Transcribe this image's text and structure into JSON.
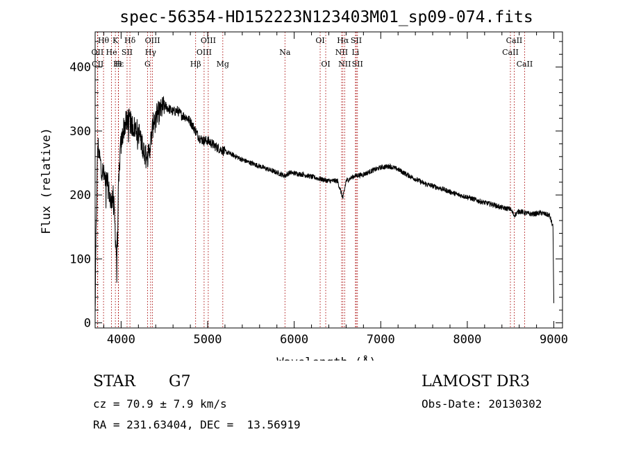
{
  "chart_data": {
    "type": "line",
    "title": "spec-56354-HD152223N123403M01_sp09-074.fits",
    "xlabel": "Wavelength (Å)",
    "ylabel": "Flux (relative)",
    "xlim": [
      3700,
      9100
    ],
    "ylim": [
      -8,
      455
    ],
    "xticks": [
      4000,
      5000,
      6000,
      7000,
      8000,
      9000
    ],
    "yticks": [
      0,
      100,
      200,
      300,
      400
    ],
    "spectrum_anchors": {
      "x": [
        3700,
        3710,
        3730,
        3760,
        3800,
        3840,
        3880,
        3910,
        3933,
        3950,
        3968,
        3990,
        4030,
        4080,
        4120,
        4200,
        4300,
        4340,
        4380,
        4450,
        4500,
        4550,
        4600,
        4650,
        4700,
        4750,
        4800,
        4861,
        4900,
        4950,
        5000,
        5100,
        5170,
        5200,
        5300,
        5400,
        5500,
        5600,
        5700,
        5800,
        5890,
        5950,
        6100,
        6300,
        6400,
        6500,
        6563,
        6600,
        6700,
        6800,
        6900,
        7000,
        7100,
        7200,
        7300,
        7400,
        7500,
        7600,
        7700,
        7800,
        7900,
        8000,
        8100,
        8200,
        8300,
        8400,
        8498,
        8542,
        8600,
        8662,
        8750,
        8850,
        8950,
        8990,
        9000
      ],
      "y": [
        10,
        130,
        280,
        250,
        230,
        220,
        190,
        200,
        140,
        100,
        200,
        270,
        305,
        320,
        310,
        300,
        255,
        280,
        320,
        330,
        340,
        335,
        330,
        332,
        325,
        322,
        315,
        300,
        290,
        285,
        285,
        275,
        270,
        268,
        262,
        255,
        250,
        245,
        240,
        235,
        230,
        235,
        232,
        225,
        222,
        222,
        195,
        222,
        230,
        232,
        238,
        243,
        245,
        240,
        232,
        225,
        218,
        214,
        210,
        205,
        200,
        197,
        192,
        188,
        185,
        180,
        178,
        168,
        175,
        172,
        170,
        172,
        168,
        150,
        30
      ]
    },
    "spectral_lines": [
      {
        "label": "Hθ",
        "x": 3797,
        "row": 0
      },
      {
        "label": "K",
        "x": 3934,
        "row": 0
      },
      {
        "label": "Hδ",
        "x": 4102,
        "row": 0
      },
      {
        "label": "OIII",
        "x": 4363,
        "row": 0
      },
      {
        "label": "OIII",
        "x": 5007,
        "row": 0
      },
      {
        "label": "OI",
        "x": 6300,
        "row": 0
      },
      {
        "label": "Hα",
        "x": 6563,
        "row": 0
      },
      {
        "label": "SII",
        "x": 6717,
        "row": 0
      },
      {
        "label": "CaII",
        "x": 8542,
        "row": 0
      },
      {
        "label": "OII",
        "x": 3727,
        "row": 1
      },
      {
        "label": "He",
        "x": 3889,
        "row": 1
      },
      {
        "label": "SII",
        "x": 4069,
        "row": 1
      },
      {
        "label": "Hγ",
        "x": 4341,
        "row": 1
      },
      {
        "label": "OIII",
        "x": 4959,
        "row": 1
      },
      {
        "label": "Na",
        "x": 5893,
        "row": 1
      },
      {
        "label": "NII",
        "x": 6548,
        "row": 1
      },
      {
        "label": "Li",
        "x": 6708,
        "row": 1
      },
      {
        "label": "CaII",
        "x": 8498,
        "row": 1
      },
      {
        "label": "CII",
        "x": 3730,
        "row": 2
      },
      {
        "label": "Hε",
        "x": 3970,
        "row": 2
      },
      {
        "label": "H",
        "x": 3968,
        "row": 2
      },
      {
        "label": "G",
        "x": 4305,
        "row": 2
      },
      {
        "label": "Hβ",
        "x": 4861,
        "row": 2
      },
      {
        "label": "Mg",
        "x": 5175,
        "row": 2
      },
      {
        "label": "OI",
        "x": 6364,
        "row": 2
      },
      {
        "label": "NII",
        "x": 6583,
        "row": 2
      },
      {
        "label": "SII",
        "x": 6731,
        "row": 2
      },
      {
        "label": "CaII",
        "x": 8662,
        "row": 2
      }
    ]
  },
  "info": {
    "class_label": "STAR",
    "subclass": "G7",
    "survey": "LAMOST DR3",
    "cz": "cz = 70.9 ± 7.9 km/s",
    "obs_date": "Obs-Date: 20130302",
    "coords": "RA = 231.63404, DEC =  13.56919"
  }
}
